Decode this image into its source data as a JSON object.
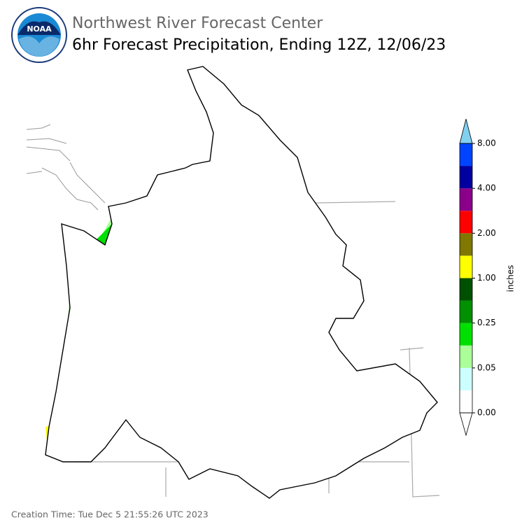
{
  "header": {
    "logo_text": "NOAA",
    "org": "Northwest River Forecast Center",
    "title": "6hr Forecast Precipitation, Ending 12Z, 12/06/23"
  },
  "colorbar": {
    "label": "inches",
    "ticks": [
      "0.00",
      "0.05",
      "0.25",
      "1.00",
      "2.00",
      "4.00",
      "8.00"
    ],
    "colors": [
      "#ffffff",
      "#ccffff",
      "#aaff99",
      "#00e000",
      "#009000",
      "#005000",
      "#ffff00",
      "#807800",
      "#ff0000",
      "#8a008a",
      "#0000a0",
      "#0044ff"
    ],
    "under_color": "#ffffff",
    "over_color": "#80d0f0"
  },
  "footer": {
    "creation_time": "Creation Time: Tue Dec 5 21:55:26 UTC 2023"
  }
}
